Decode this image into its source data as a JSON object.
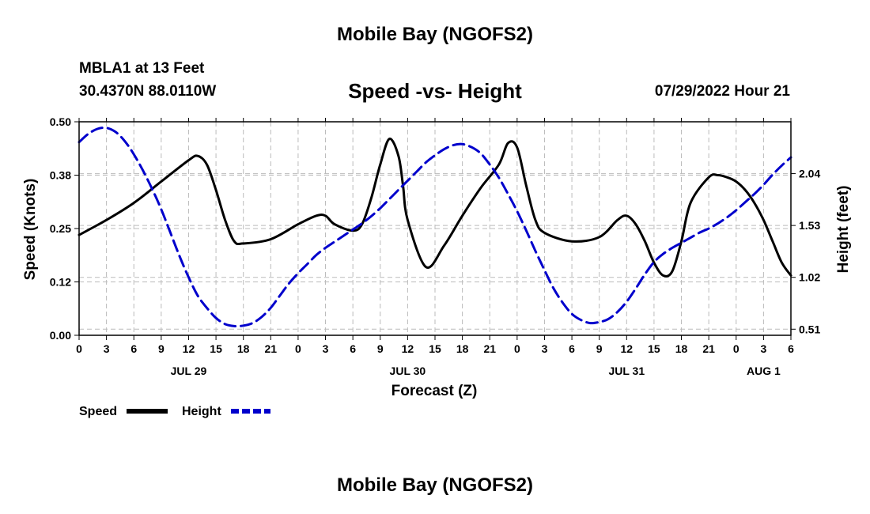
{
  "header": {
    "title": "Mobile Bay (NGOFS2)",
    "station": "MBLA1 at 13 Feet",
    "coords": "30.4370N  88.0110W",
    "subtitle": "Speed -vs- Height",
    "datetime": "07/29/2022 Hour 21"
  },
  "footer": {
    "title": "Mobile Bay (NGOFS2)"
  },
  "colors": {
    "speed": "#000000",
    "height": "#0000cc",
    "grid": "#bbbbbb"
  },
  "chart_data": {
    "type": "line",
    "title": "Speed -vs- Height",
    "xlabel": "Forecast (Z)",
    "ylabel": "Speed (Knots)",
    "ylabel_right": "Height (feet)",
    "x_range_hours": [
      0,
      78
    ],
    "x_start": "07/29/2022 00Z",
    "grid": true,
    "x_ticks": [
      0,
      3,
      6,
      9,
      12,
      15,
      18,
      21,
      24,
      27,
      30,
      33,
      36,
      39,
      42,
      45,
      48,
      51,
      54,
      57,
      60,
      63,
      66,
      69,
      72,
      75,
      78
    ],
    "x_tick_labels": [
      "0",
      "3",
      "6",
      "9",
      "12",
      "15",
      "18",
      "21",
      "0",
      "3",
      "6",
      "9",
      "12",
      "15",
      "18",
      "21",
      "0",
      "3",
      "6",
      "9",
      "12",
      "15",
      "18",
      "21",
      "0",
      "3",
      "6"
    ],
    "date_labels": [
      {
        "hour": 12,
        "label": "JUL 29"
      },
      {
        "hour": 36,
        "label": "JUL 30"
      },
      {
        "hour": 60,
        "label": "JUL 31"
      },
      {
        "hour": 75,
        "label": "AUG 1"
      }
    ],
    "y_left": {
      "range": [
        0,
        0.5
      ],
      "ticks": [
        0,
        0.125,
        0.25,
        0.375,
        0.5
      ],
      "tick_labels": [
        "0.00",
        "0.12",
        "0.25",
        "0.38",
        "0.50"
      ]
    },
    "y_right": {
      "range": [
        0.45,
        2.55
      ],
      "ticks": [
        0.51,
        1.02,
        1.53,
        2.04
      ],
      "tick_labels": [
        "0.51",
        "1.02",
        "1.53",
        "2.04"
      ]
    },
    "legend": {
      "position": "bottom-left",
      "entries": [
        {
          "name": "Speed",
          "style": "solid"
        },
        {
          "name": "Height",
          "style": "dashed"
        }
      ]
    },
    "series": [
      {
        "name": "Speed",
        "axis": "left",
        "style": "solid",
        "x": [
          0,
          3,
          6,
          9,
          12,
          13,
          14,
          15,
          16,
          17,
          18,
          21,
          24,
          26,
          27,
          28,
          30,
          31,
          32,
          33,
          34,
          35,
          35.5,
          36,
          38,
          40,
          42,
          44,
          46,
          47,
          48,
          49,
          50,
          51,
          54,
          57,
          59,
          60,
          61,
          62,
          63,
          64,
          65,
          66,
          67,
          69,
          70,
          71,
          72,
          73,
          74,
          75,
          76,
          77,
          78
        ],
        "values": [
          0.235,
          0.27,
          0.31,
          0.36,
          0.41,
          0.42,
          0.4,
          0.34,
          0.27,
          0.22,
          0.215,
          0.225,
          0.26,
          0.28,
          0.28,
          0.26,
          0.245,
          0.26,
          0.32,
          0.4,
          0.46,
          0.42,
          0.35,
          0.27,
          0.16,
          0.21,
          0.28,
          0.345,
          0.4,
          0.45,
          0.44,
          0.35,
          0.27,
          0.24,
          0.22,
          0.23,
          0.27,
          0.28,
          0.26,
          0.22,
          0.17,
          0.14,
          0.15,
          0.22,
          0.31,
          0.37,
          0.375,
          0.37,
          0.36,
          0.34,
          0.31,
          0.27,
          0.22,
          0.17,
          0.14
        ]
      },
      {
        "name": "Height",
        "axis": "right",
        "style": "dashed",
        "x": [
          0,
          1,
          2,
          3,
          4,
          5,
          6,
          7,
          8,
          9,
          10,
          11,
          12,
          13,
          14,
          15,
          16,
          17,
          18,
          19,
          20,
          21,
          22,
          23,
          24,
          25,
          26,
          27,
          28,
          29,
          30,
          31,
          32,
          33,
          34,
          35,
          36,
          37,
          38,
          39,
          40,
          41,
          42,
          43,
          44,
          45,
          46,
          47,
          48,
          49,
          50,
          51,
          52,
          53,
          54,
          55,
          56,
          57,
          58,
          59,
          60,
          61,
          62,
          63,
          64,
          65,
          66,
          67,
          68,
          69,
          70,
          71,
          72,
          73,
          74,
          75,
          76,
          77,
          78
        ],
        "values": [
          2.35,
          2.43,
          2.48,
          2.49,
          2.45,
          2.36,
          2.23,
          2.07,
          1.89,
          1.69,
          1.46,
          1.23,
          1.02,
          0.84,
          0.72,
          0.62,
          0.56,
          0.54,
          0.545,
          0.57,
          0.63,
          0.72,
          0.84,
          0.96,
          1.06,
          1.15,
          1.24,
          1.31,
          1.37,
          1.43,
          1.49,
          1.55,
          1.62,
          1.7,
          1.79,
          1.88,
          1.97,
          2.06,
          2.15,
          2.22,
          2.28,
          2.32,
          2.33,
          2.3,
          2.24,
          2.13,
          2.0,
          1.84,
          1.67,
          1.48,
          1.28,
          1.09,
          0.91,
          0.77,
          0.66,
          0.6,
          0.57,
          0.58,
          0.61,
          0.68,
          0.78,
          0.91,
          1.05,
          1.17,
          1.25,
          1.31,
          1.36,
          1.41,
          1.46,
          1.5,
          1.55,
          1.61,
          1.68,
          1.76,
          1.84,
          1.93,
          2.03,
          2.12,
          2.2
        ]
      }
    ]
  }
}
